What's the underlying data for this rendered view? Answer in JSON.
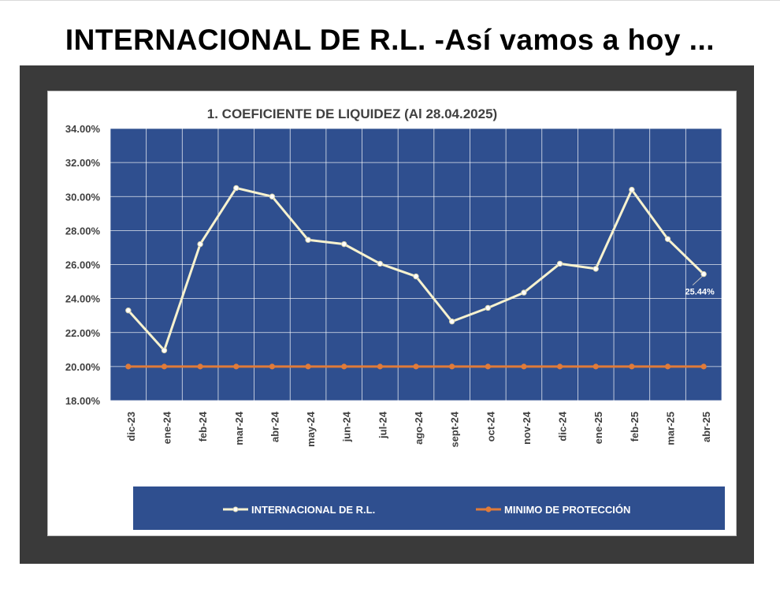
{
  "slide": {
    "title": "INTERNACIONAL DE R.L. -Así vamos a hoy ..."
  },
  "colors": {
    "plot_background": "#2f4f8f",
    "legend_background": "#2f4f8f",
    "series_main": "#f7f2cf",
    "series_min": "#e07b39",
    "frame": "#3a3a3a"
  },
  "chart_data": {
    "type": "line",
    "title": "1. COEFICIENTE DE LIQUIDEZ (Al 28.04.2025)",
    "xlabel": "",
    "ylabel": "",
    "categories": [
      "dic-23",
      "ene-24",
      "feb-24",
      "mar-24",
      "abr-24",
      "may-24",
      "jun-24",
      "jul-24",
      "ago-24",
      "sept-24",
      "oct-24",
      "nov-24",
      "dic-24",
      "ene-25",
      "feb-25",
      "mar-25",
      "abr-25"
    ],
    "ylim": [
      18,
      34
    ],
    "yticks": [
      "18.00%",
      "20.00%",
      "22.00%",
      "24.00%",
      "26.00%",
      "28.00%",
      "30.00%",
      "32.00%",
      "34.00%"
    ],
    "grid": true,
    "legend_position": "bottom",
    "series": [
      {
        "name": "INTERNACIONAL DE R.L.",
        "color": "#f7f2cf",
        "values": [
          23.3,
          20.95,
          27.2,
          30.5,
          30.0,
          27.45,
          27.2,
          26.05,
          25.3,
          22.65,
          23.45,
          24.35,
          26.05,
          25.75,
          30.4,
          27.5,
          25.44
        ]
      },
      {
        "name": "MINIMO DE PROTECCIÓN",
        "color": "#e07b39",
        "values": [
          20,
          20,
          20,
          20,
          20,
          20,
          20,
          20,
          20,
          20,
          20,
          20,
          20,
          20,
          20,
          20,
          20
        ]
      }
    ],
    "data_labels": [
      {
        "series": 0,
        "index": 16,
        "text": "25.44%"
      }
    ]
  }
}
